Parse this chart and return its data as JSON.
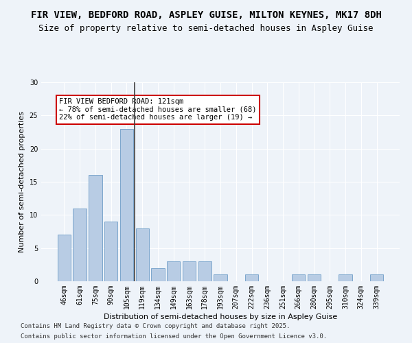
{
  "title_line1": "FIR VIEW, BEDFORD ROAD, ASPLEY GUISE, MILTON KEYNES, MK17 8DH",
  "title_line2": "Size of property relative to semi-detached houses in Aspley Guise",
  "xlabel": "Distribution of semi-detached houses by size in Aspley Guise",
  "ylabel": "Number of semi-detached properties",
  "categories": [
    "46sqm",
    "61sqm",
    "75sqm",
    "90sqm",
    "105sqm",
    "119sqm",
    "134sqm",
    "149sqm",
    "163sqm",
    "178sqm",
    "193sqm",
    "207sqm",
    "222sqm",
    "236sqm",
    "251sqm",
    "266sqm",
    "280sqm",
    "295sqm",
    "310sqm",
    "324sqm",
    "339sqm"
  ],
  "values": [
    7,
    11,
    16,
    9,
    23,
    8,
    2,
    3,
    3,
    3,
    1,
    0,
    1,
    0,
    0,
    1,
    1,
    0,
    1,
    0,
    1
  ],
  "bar_color_smaller": "#b8cce4",
  "bar_color_subject": "#b8cce4",
  "bar_color_larger": "#b8cce4",
  "subject_index": 4,
  "subject_line_color": "#404040",
  "ylim": [
    0,
    30
  ],
  "yticks": [
    0,
    5,
    10,
    15,
    20,
    25,
    30
  ],
  "annotation_title": "FIR VIEW BEDFORD ROAD: 121sqm",
  "annotation_line1": "← 78% of semi-detached houses are smaller (68)",
  "annotation_line2": "22% of semi-detached houses are larger (19) →",
  "annotation_box_color": "#ffffff",
  "annotation_box_edge": "#cc0000",
  "footer_line1": "Contains HM Land Registry data © Crown copyright and database right 2025.",
  "footer_line2": "Contains public sector information licensed under the Open Government Licence v3.0.",
  "background_color": "#eef3f9",
  "plot_bg_color": "#eef3f9",
  "grid_color": "#ffffff",
  "title_fontsize": 10,
  "subtitle_fontsize": 9,
  "axis_label_fontsize": 8,
  "tick_fontsize": 7,
  "footer_fontsize": 6.5
}
